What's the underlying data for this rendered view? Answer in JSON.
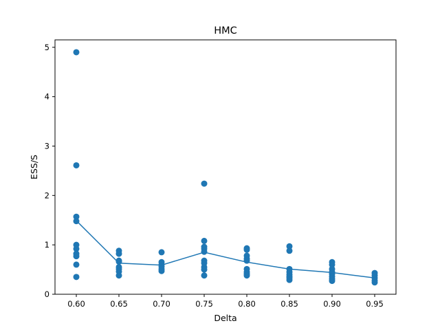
{
  "chart_data": {
    "type": "scatter",
    "title": "HMC",
    "xlabel": "Delta",
    "ylabel": "ESS/S",
    "xlim": [
      0.575,
      0.975
    ],
    "ylim": [
      0,
      5.15
    ],
    "xticks": [
      0.6,
      0.65,
      0.7,
      0.75,
      0.8,
      0.85,
      0.9,
      0.95
    ],
    "xtick_labels": [
      "0.60",
      "0.65",
      "0.70",
      "0.75",
      "0.80",
      "0.85",
      "0.90",
      "0.95"
    ],
    "yticks": [
      0,
      1,
      2,
      3,
      4,
      5
    ],
    "ytick_labels": [
      "0",
      "1",
      "2",
      "3",
      "4",
      "5"
    ],
    "grid": false,
    "color": "#1f77b4",
    "series": [
      {
        "kind": "scatter",
        "points": [
          [
            0.6,
            4.9
          ],
          [
            0.6,
            2.61
          ],
          [
            0.6,
            1.57
          ],
          [
            0.6,
            1.48
          ],
          [
            0.6,
            1.0
          ],
          [
            0.6,
            0.92
          ],
          [
            0.6,
            0.82
          ],
          [
            0.6,
            0.77
          ],
          [
            0.6,
            0.6
          ],
          [
            0.6,
            0.35
          ],
          [
            0.65,
            0.88
          ],
          [
            0.65,
            0.82
          ],
          [
            0.65,
            0.68
          ],
          [
            0.65,
            0.66
          ],
          [
            0.65,
            0.55
          ],
          [
            0.65,
            0.51
          ],
          [
            0.65,
            0.46
          ],
          [
            0.65,
            0.38
          ],
          [
            0.7,
            0.85
          ],
          [
            0.7,
            0.65
          ],
          [
            0.7,
            0.6
          ],
          [
            0.7,
            0.56
          ],
          [
            0.7,
            0.51
          ],
          [
            0.7,
            0.47
          ],
          [
            0.75,
            2.24
          ],
          [
            0.75,
            1.08
          ],
          [
            0.75,
            0.96
          ],
          [
            0.75,
            0.92
          ],
          [
            0.75,
            0.86
          ],
          [
            0.75,
            0.68
          ],
          [
            0.75,
            0.63
          ],
          [
            0.75,
            0.55
          ],
          [
            0.75,
            0.5
          ],
          [
            0.75,
            0.38
          ],
          [
            0.8,
            0.93
          ],
          [
            0.8,
            0.9
          ],
          [
            0.8,
            0.78
          ],
          [
            0.8,
            0.72
          ],
          [
            0.8,
            0.68
          ],
          [
            0.8,
            0.51
          ],
          [
            0.8,
            0.45
          ],
          [
            0.8,
            0.41
          ],
          [
            0.8,
            0.38
          ],
          [
            0.85,
            0.97
          ],
          [
            0.85,
            0.88
          ],
          [
            0.85,
            0.51
          ],
          [
            0.85,
            0.45
          ],
          [
            0.85,
            0.4
          ],
          [
            0.85,
            0.36
          ],
          [
            0.85,
            0.33
          ],
          [
            0.85,
            0.29
          ],
          [
            0.9,
            0.65
          ],
          [
            0.9,
            0.6
          ],
          [
            0.9,
            0.51
          ],
          [
            0.9,
            0.45
          ],
          [
            0.9,
            0.41
          ],
          [
            0.9,
            0.36
          ],
          [
            0.9,
            0.31
          ],
          [
            0.9,
            0.27
          ],
          [
            0.95,
            0.43
          ],
          [
            0.95,
            0.38
          ],
          [
            0.95,
            0.33
          ],
          [
            0.95,
            0.28
          ],
          [
            0.95,
            0.24
          ]
        ]
      },
      {
        "kind": "line",
        "x": [
          0.6,
          0.65,
          0.7,
          0.75,
          0.8,
          0.85,
          0.9,
          0.95
        ],
        "values": [
          1.49,
          0.63,
          0.59,
          0.85,
          0.65,
          0.51,
          0.44,
          0.33
        ]
      }
    ]
  }
}
